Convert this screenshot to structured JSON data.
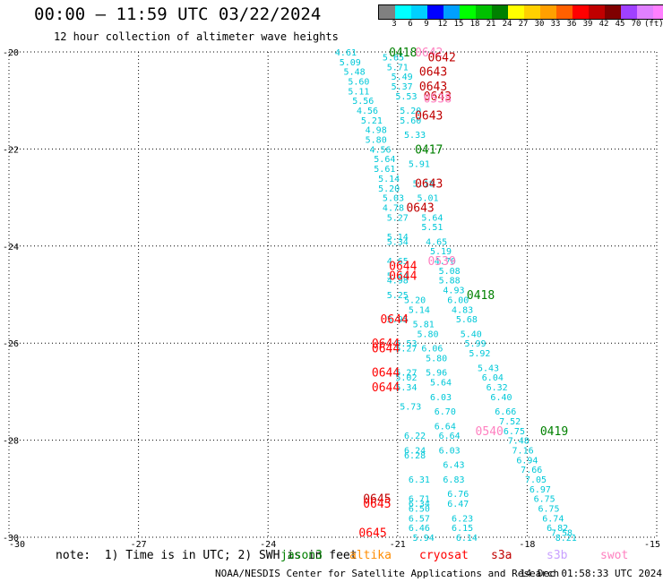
{
  "title": "00:00 — 11:59 UTC 03/22/2024",
  "subtitle": "12 hour collection of altimeter wave heights",
  "legend": {
    "colors": [
      "#808080",
      "#00ffff",
      "#00d0ff",
      "#0000ff",
      "#00a0ff",
      "#00ff00",
      "#00c000",
      "#008000",
      "#ffff00",
      "#ffd000",
      "#ffa000",
      "#ff6000",
      "#ff0000",
      "#c00000",
      "#800000",
      "#a040ff",
      "#e080ff",
      "#ff80ff",
      "#000000"
    ],
    "ticks": [
      "3",
      "6",
      "9",
      "12",
      "15",
      "18",
      "21",
      "24",
      "27",
      "30",
      "33",
      "36",
      "39",
      "42",
      "45",
      "70",
      "(ft)"
    ]
  },
  "note": "note:  1) Time is in UTC; 2) SWH is in feet",
  "satellites": [
    {
      "name": "jason3",
      "color": "#008000"
    },
    {
      "name": "altika",
      "color": "#ff8c00"
    },
    {
      "name": "cryosat",
      "color": "#ff0000"
    },
    {
      "name": "s3a",
      "color": "#c00000"
    },
    {
      "name": "s3b",
      "color": "#c8a0ff"
    },
    {
      "name": "swot",
      "color": "#ff80c0"
    }
  ],
  "credit": "NOAA/NESDIS Center for Satellite Applications and Research",
  "timestamp": "14 Dec 01:58:33 UTC 2024",
  "chart_data": {
    "type": "scatter",
    "xlim": [
      -30,
      -15
    ],
    "ylim": [
      -30,
      -20
    ],
    "x_ticks": [
      "-30",
      "-27",
      "-24",
      "-21",
      "-18",
      "-15"
    ],
    "y_ticks": [
      "-20",
      "-22",
      "-24",
      "-26",
      "-28",
      "-30"
    ],
    "grid": true,
    "series": [
      {
        "color": "#00c8d8",
        "points": [
          [
            -22.2,
            -20.0,
            "4.61"
          ],
          [
            -22.1,
            -20.2,
            "5.09"
          ],
          [
            -22.0,
            -20.4,
            "5.48"
          ],
          [
            -21.9,
            -20.6,
            "5.60"
          ],
          [
            -21.9,
            -20.8,
            "5.11"
          ],
          [
            -21.8,
            -21.0,
            "5.56"
          ],
          [
            -21.7,
            -21.2,
            "4.56"
          ],
          [
            -21.6,
            -21.4,
            "5.21"
          ],
          [
            -21.5,
            -21.6,
            "4.98"
          ],
          [
            -21.5,
            -21.8,
            "5.80"
          ],
          [
            -21.4,
            -22.0,
            "4.56"
          ],
          [
            -21.3,
            -22.2,
            "5.64"
          ],
          [
            -21.3,
            -22.4,
            "5.61"
          ],
          [
            -21.2,
            -22.6,
            "5.14"
          ],
          [
            -21.2,
            -22.8,
            "5.20"
          ],
          [
            -21.1,
            -23.0,
            "5.03"
          ],
          [
            -21.1,
            -23.2,
            "4.78"
          ],
          [
            -21.0,
            -23.4,
            "5.27"
          ],
          [
            -21.0,
            -23.8,
            "5.14"
          ],
          [
            -21.0,
            -23.9,
            "5.34"
          ],
          [
            -21.0,
            -24.3,
            "4.65"
          ],
          [
            -21.0,
            -24.6,
            "5.44"
          ],
          [
            -21.0,
            -24.7,
            "4.98"
          ],
          [
            -21.0,
            -25.0,
            "5.25"
          ],
          [
            -21.0,
            -25.5,
            "5.95"
          ],
          [
            -20.8,
            -26.0,
            "5.53"
          ],
          [
            -20.8,
            -26.1,
            "5.27"
          ],
          [
            -20.8,
            -26.6,
            "5.27"
          ],
          [
            -20.8,
            -26.7,
            "5.02"
          ],
          [
            -20.8,
            -26.9,
            "5.34"
          ],
          [
            -20.7,
            -27.3,
            "5.73"
          ],
          [
            -20.6,
            -27.9,
            "6.22"
          ],
          [
            -20.6,
            -28.2,
            "6.24"
          ],
          [
            -20.6,
            -28.3,
            "6.28"
          ],
          [
            -20.5,
            -28.8,
            "6.31"
          ],
          [
            -20.5,
            -29.2,
            "6.71"
          ],
          [
            -20.5,
            -29.3,
            "6.34"
          ],
          [
            -20.5,
            -29.4,
            "6.50"
          ],
          [
            -20.5,
            -29.6,
            "6.57"
          ],
          [
            -20.5,
            -29.8,
            "6.46"
          ],
          [
            -20.4,
            -30.0,
            "5.94"
          ]
        ]
      },
      {
        "color": "#00c8d8",
        "points": [
          [
            -21.1,
            -20.1,
            "5.65"
          ],
          [
            -21.0,
            -20.3,
            "5.71"
          ],
          [
            -20.9,
            -20.5,
            "5.49"
          ],
          [
            -20.9,
            -20.7,
            "5.37"
          ],
          [
            -20.8,
            -20.9,
            "5.53"
          ],
          [
            -20.7,
            -21.2,
            "5.20"
          ],
          [
            -20.7,
            -21.4,
            "5.60"
          ],
          [
            -20.6,
            -21.7,
            "5.33"
          ],
          [
            -20.5,
            -22.3,
            "5.91"
          ],
          [
            -20.4,
            -22.7,
            "5.18"
          ],
          [
            -20.3,
            -23.0,
            "5.01"
          ],
          [
            -20.2,
            -23.4,
            "5.64"
          ],
          [
            -20.2,
            -23.6,
            "5.51"
          ],
          [
            -20.1,
            -23.9,
            "4.65"
          ],
          [
            -20.0,
            -24.1,
            "5.19"
          ],
          [
            -19.9,
            -24.3,
            "4.70"
          ],
          [
            -19.8,
            -24.5,
            "5.08"
          ],
          [
            -19.8,
            -24.7,
            "5.88"
          ],
          [
            -19.7,
            -24.9,
            "4.93"
          ],
          [
            -19.6,
            -25.1,
            "6.00"
          ],
          [
            -19.5,
            -25.3,
            "4.83"
          ],
          [
            -19.4,
            -25.5,
            "5.68"
          ],
          [
            -19.3,
            -25.8,
            "5.40"
          ],
          [
            -19.2,
            -26.0,
            "5.99"
          ],
          [
            -19.1,
            -26.2,
            "5.92"
          ],
          [
            -18.9,
            -26.5,
            "5.43"
          ],
          [
            -18.8,
            -26.7,
            "6.04"
          ],
          [
            -18.7,
            -26.9,
            "6.32"
          ],
          [
            -18.6,
            -27.1,
            "6.40"
          ],
          [
            -18.5,
            -27.4,
            "6.66"
          ],
          [
            -18.4,
            -27.6,
            "7.52"
          ],
          [
            -18.3,
            -27.8,
            "6.75"
          ],
          [
            -18.2,
            -28.0,
            "7.48"
          ],
          [
            -18.1,
            -28.2,
            "7.16"
          ],
          [
            -18.0,
            -28.4,
            "6.94"
          ],
          [
            -17.9,
            -28.6,
            "7.66"
          ],
          [
            -17.8,
            -28.8,
            "7.05"
          ],
          [
            -17.7,
            -29.0,
            "6.97"
          ],
          [
            -17.6,
            -29.2,
            "6.75"
          ],
          [
            -17.5,
            -29.4,
            "6.75"
          ],
          [
            -17.4,
            -29.6,
            "6.74"
          ],
          [
            -17.3,
            -29.8,
            "6.82"
          ],
          [
            -17.2,
            -29.9,
            "7.58"
          ],
          [
            -17.1,
            -30.0,
            "8.21"
          ]
        ]
      },
      {
        "color": "#00c8d8",
        "points": [
          [
            -20.6,
            -25.1,
            "5.20"
          ],
          [
            -20.5,
            -25.3,
            "5.14"
          ],
          [
            -20.4,
            -25.6,
            "5.81"
          ],
          [
            -20.3,
            -25.8,
            "5.80"
          ],
          [
            -20.2,
            -26.1,
            "6.06"
          ],
          [
            -20.1,
            -26.3,
            "5.80"
          ],
          [
            -20.1,
            -26.6,
            "5.96"
          ],
          [
            -20.0,
            -26.8,
            "5.64"
          ],
          [
            -20.0,
            -27.1,
            "6.03"
          ],
          [
            -19.9,
            -27.4,
            "6.70"
          ],
          [
            -19.9,
            -27.7,
            "6.64"
          ],
          [
            -19.8,
            -27.9,
            "6.64"
          ],
          [
            -19.8,
            -28.2,
            "6.03"
          ],
          [
            -19.7,
            -28.5,
            "6.43"
          ],
          [
            -19.7,
            -28.8,
            "6.83"
          ],
          [
            -19.6,
            -29.1,
            "6.76"
          ],
          [
            -19.6,
            -29.3,
            "6.47"
          ],
          [
            -19.5,
            -29.6,
            "6.23"
          ],
          [
            -19.5,
            -29.8,
            "6.15"
          ],
          [
            -19.4,
            -30.0,
            "6.14"
          ]
        ]
      }
    ],
    "passes": [
      {
        "x": -21.2,
        "y": -20.0,
        "text": "0418",
        "color": "#008000"
      },
      {
        "x": -20.6,
        "y": -20.0,
        "text": "0642",
        "color": "#ff80c0"
      },
      {
        "x": -20.3,
        "y": -20.1,
        "text": "0642",
        "color": "#c00000"
      },
      {
        "x": -20.5,
        "y": -20.4,
        "text": "0643",
        "color": "#c00000"
      },
      {
        "x": -20.5,
        "y": -20.7,
        "text": "0643",
        "color": "#c00000"
      },
      {
        "x": -20.4,
        "y": -20.9,
        "text": "0643",
        "color": "#c00000"
      },
      {
        "x": -20.4,
        "y": -20.95,
        "text": "0538",
        "color": "#ff80c0"
      },
      {
        "x": -20.6,
        "y": -21.3,
        "text": "0643",
        "color": "#c00000"
      },
      {
        "x": -20.6,
        "y": -22.0,
        "text": "0417",
        "color": "#008000"
      },
      {
        "x": -20.6,
        "y": -22.7,
        "text": "0643",
        "color": "#c00000"
      },
      {
        "x": -20.8,
        "y": -23.2,
        "text": "0643",
        "color": "#c00000"
      },
      {
        "x": -20.3,
        "y": -24.3,
        "text": "0539",
        "color": "#ff80c0"
      },
      {
        "x": -21.2,
        "y": -24.4,
        "text": "0644",
        "color": "#ff0000"
      },
      {
        "x": -21.2,
        "y": -24.6,
        "text": "0644",
        "color": "#ff0000"
      },
      {
        "x": -19.4,
        "y": -25.0,
        "text": "0418",
        "color": "#008000"
      },
      {
        "x": -21.4,
        "y": -25.5,
        "text": "0644",
        "color": "#ff0000"
      },
      {
        "x": -21.6,
        "y": -26.0,
        "text": "0644",
        "color": "#ff0000"
      },
      {
        "x": -21.6,
        "y": -26.1,
        "text": "0644",
        "color": "#ff0000"
      },
      {
        "x": -21.6,
        "y": -26.6,
        "text": "0644",
        "color": "#ff0000"
      },
      {
        "x": -21.6,
        "y": -26.9,
        "text": "0644",
        "color": "#ff0000"
      },
      {
        "x": -19.2,
        "y": -27.8,
        "text": "0540",
        "color": "#ff80c0"
      },
      {
        "x": -17.7,
        "y": -27.8,
        "text": "0419",
        "color": "#008000"
      },
      {
        "x": -21.8,
        "y": -29.2,
        "text": "0645",
        "color": "#c00000"
      },
      {
        "x": -21.8,
        "y": -29.3,
        "text": "0645",
        "color": "#ff0000"
      },
      {
        "x": -21.9,
        "y": -29.9,
        "text": "0645",
        "color": "#ff0000"
      }
    ]
  }
}
